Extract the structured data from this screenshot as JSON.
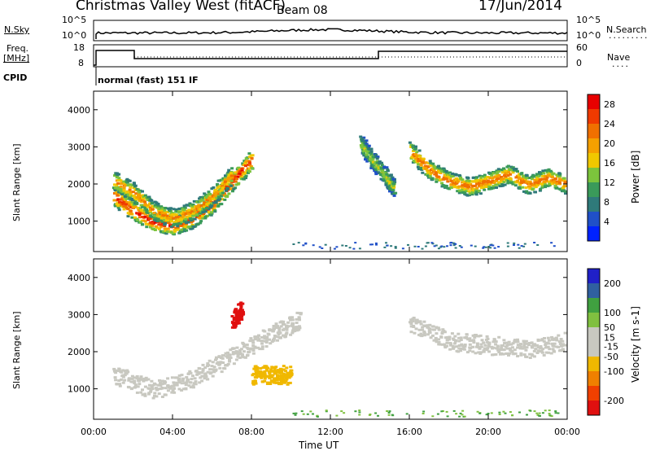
{
  "header": {
    "title": "Christmas Valley West (fitACF)",
    "beam": "Beam 08",
    "date": "17/Jun/2014"
  },
  "nsky_panel": {
    "left_label": "N.Sky",
    "right_label": "N.Search",
    "left_ticks": [
      "10^5",
      "10^0"
    ],
    "right_ticks": [
      "10^5",
      "10^0"
    ]
  },
  "freq_panel": {
    "left_label_1": "Freq.",
    "left_label_2": "[MHz]",
    "right_label": "Nave",
    "left_ticks": [
      "18",
      "8"
    ],
    "right_ticks": [
      "60",
      "0"
    ]
  },
  "cpid": {
    "label": "CPID",
    "mode": "normal (fast) 151 IF"
  },
  "colors": {
    "frame": "#000000",
    "power_scale": [
      "#0022ff",
      "#2050c8",
      "#2f7a7a",
      "#3a9a5a",
      "#7cc43c",
      "#f0c800",
      "#f5a000",
      "#f07000",
      "#f03a00",
      "#e80000"
    ],
    "velocity_scale": [
      "#e01010",
      "#f04000",
      "#f08000",
      "#f0b800",
      "#c8c8c0",
      "#c8c8c0",
      "#80c040",
      "#40a040",
      "#3060a0",
      "#2020c8"
    ]
  },
  "chart_data": [
    {
      "type": "heatmap",
      "quantity": "Power",
      "xlabel": "",
      "ylabel": "Slant Range [km]",
      "x_range": [
        "00:00",
        "00:00"
      ],
      "ylim": [
        180,
        4500
      ],
      "yticks": [
        1000,
        2000,
        3000,
        4000
      ],
      "colorbar_label": "Power [dB]",
      "colorbar_ticks": [
        4,
        8,
        12,
        16,
        20,
        24,
        28
      ],
      "colorbar_range": [
        0,
        30
      ],
      "features": [
        {
          "hours": [
            1.0,
            2.0,
            3.0,
            4.0,
            5.0,
            6.0,
            7.0,
            8.0
          ],
          "range_km": [
            1700,
            1300,
            1000,
            900,
            1100,
            1500,
            2100,
            2700
          ],
          "power_db": 28
        },
        {
          "hours": [
            1.0,
            2.0,
            3.0,
            4.0,
            5.0,
            6.0,
            7.0
          ],
          "range_km": [
            2100,
            1800,
            1300,
            1100,
            1300,
            1700,
            2300
          ],
          "power_db": 22
        },
        {
          "hours": [
            16.0,
            17.0,
            18.0,
            19.0,
            20.0,
            21.0,
            22.0,
            23.0,
            24.0
          ],
          "range_km": [
            2900,
            2400,
            2100,
            1950,
            2100,
            2300,
            2000,
            2200,
            2000
          ],
          "power_db": 24
        },
        {
          "hours": [
            13.5,
            14.2,
            14.8,
            15.2
          ],
          "range_km": [
            3100,
            2600,
            2200,
            1900
          ],
          "power_db": 16
        }
      ]
    },
    {
      "type": "heatmap",
      "quantity": "Velocity",
      "xlabel": "Time UT",
      "ylabel": "Slant Range [km]",
      "x_range": [
        "00:00",
        "00:00"
      ],
      "xticks": [
        "00:00",
        "04:00",
        "08:00",
        "12:00",
        "16:00",
        "20:00",
        "00:00"
      ],
      "ylim": [
        180,
        4500
      ],
      "yticks": [
        1000,
        2000,
        3000,
        4000
      ],
      "colorbar_label": "Velocity [m s-1]",
      "colorbar_ticks": [
        -200,
        -100,
        -50,
        -15,
        15,
        50,
        100,
        200
      ],
      "colorbar_range": [
        -250,
        250
      ],
      "features": [
        {
          "hours": [
            1.0,
            3.0,
            5.0,
            7.0,
            9.0,
            10.5
          ],
          "range_km": [
            1400,
            1000,
            1300,
            1900,
            2500,
            2900
          ],
          "velocity_ms": 0
        },
        {
          "hours": [
            16.0,
            18.0,
            20.0,
            22.0,
            24.0
          ],
          "range_km": [
            2800,
            2300,
            2200,
            2100,
            2300
          ],
          "velocity_ms": 0
        },
        {
          "hours": [
            7.0,
            7.5
          ],
          "range_km": [
            2900,
            3200
          ],
          "velocity_ms": -220
        },
        {
          "hours": [
            8.0,
            9.0,
            10.0
          ],
          "range_km": [
            1400,
            1400,
            1400
          ],
          "velocity_ms": -80
        }
      ]
    }
  ]
}
